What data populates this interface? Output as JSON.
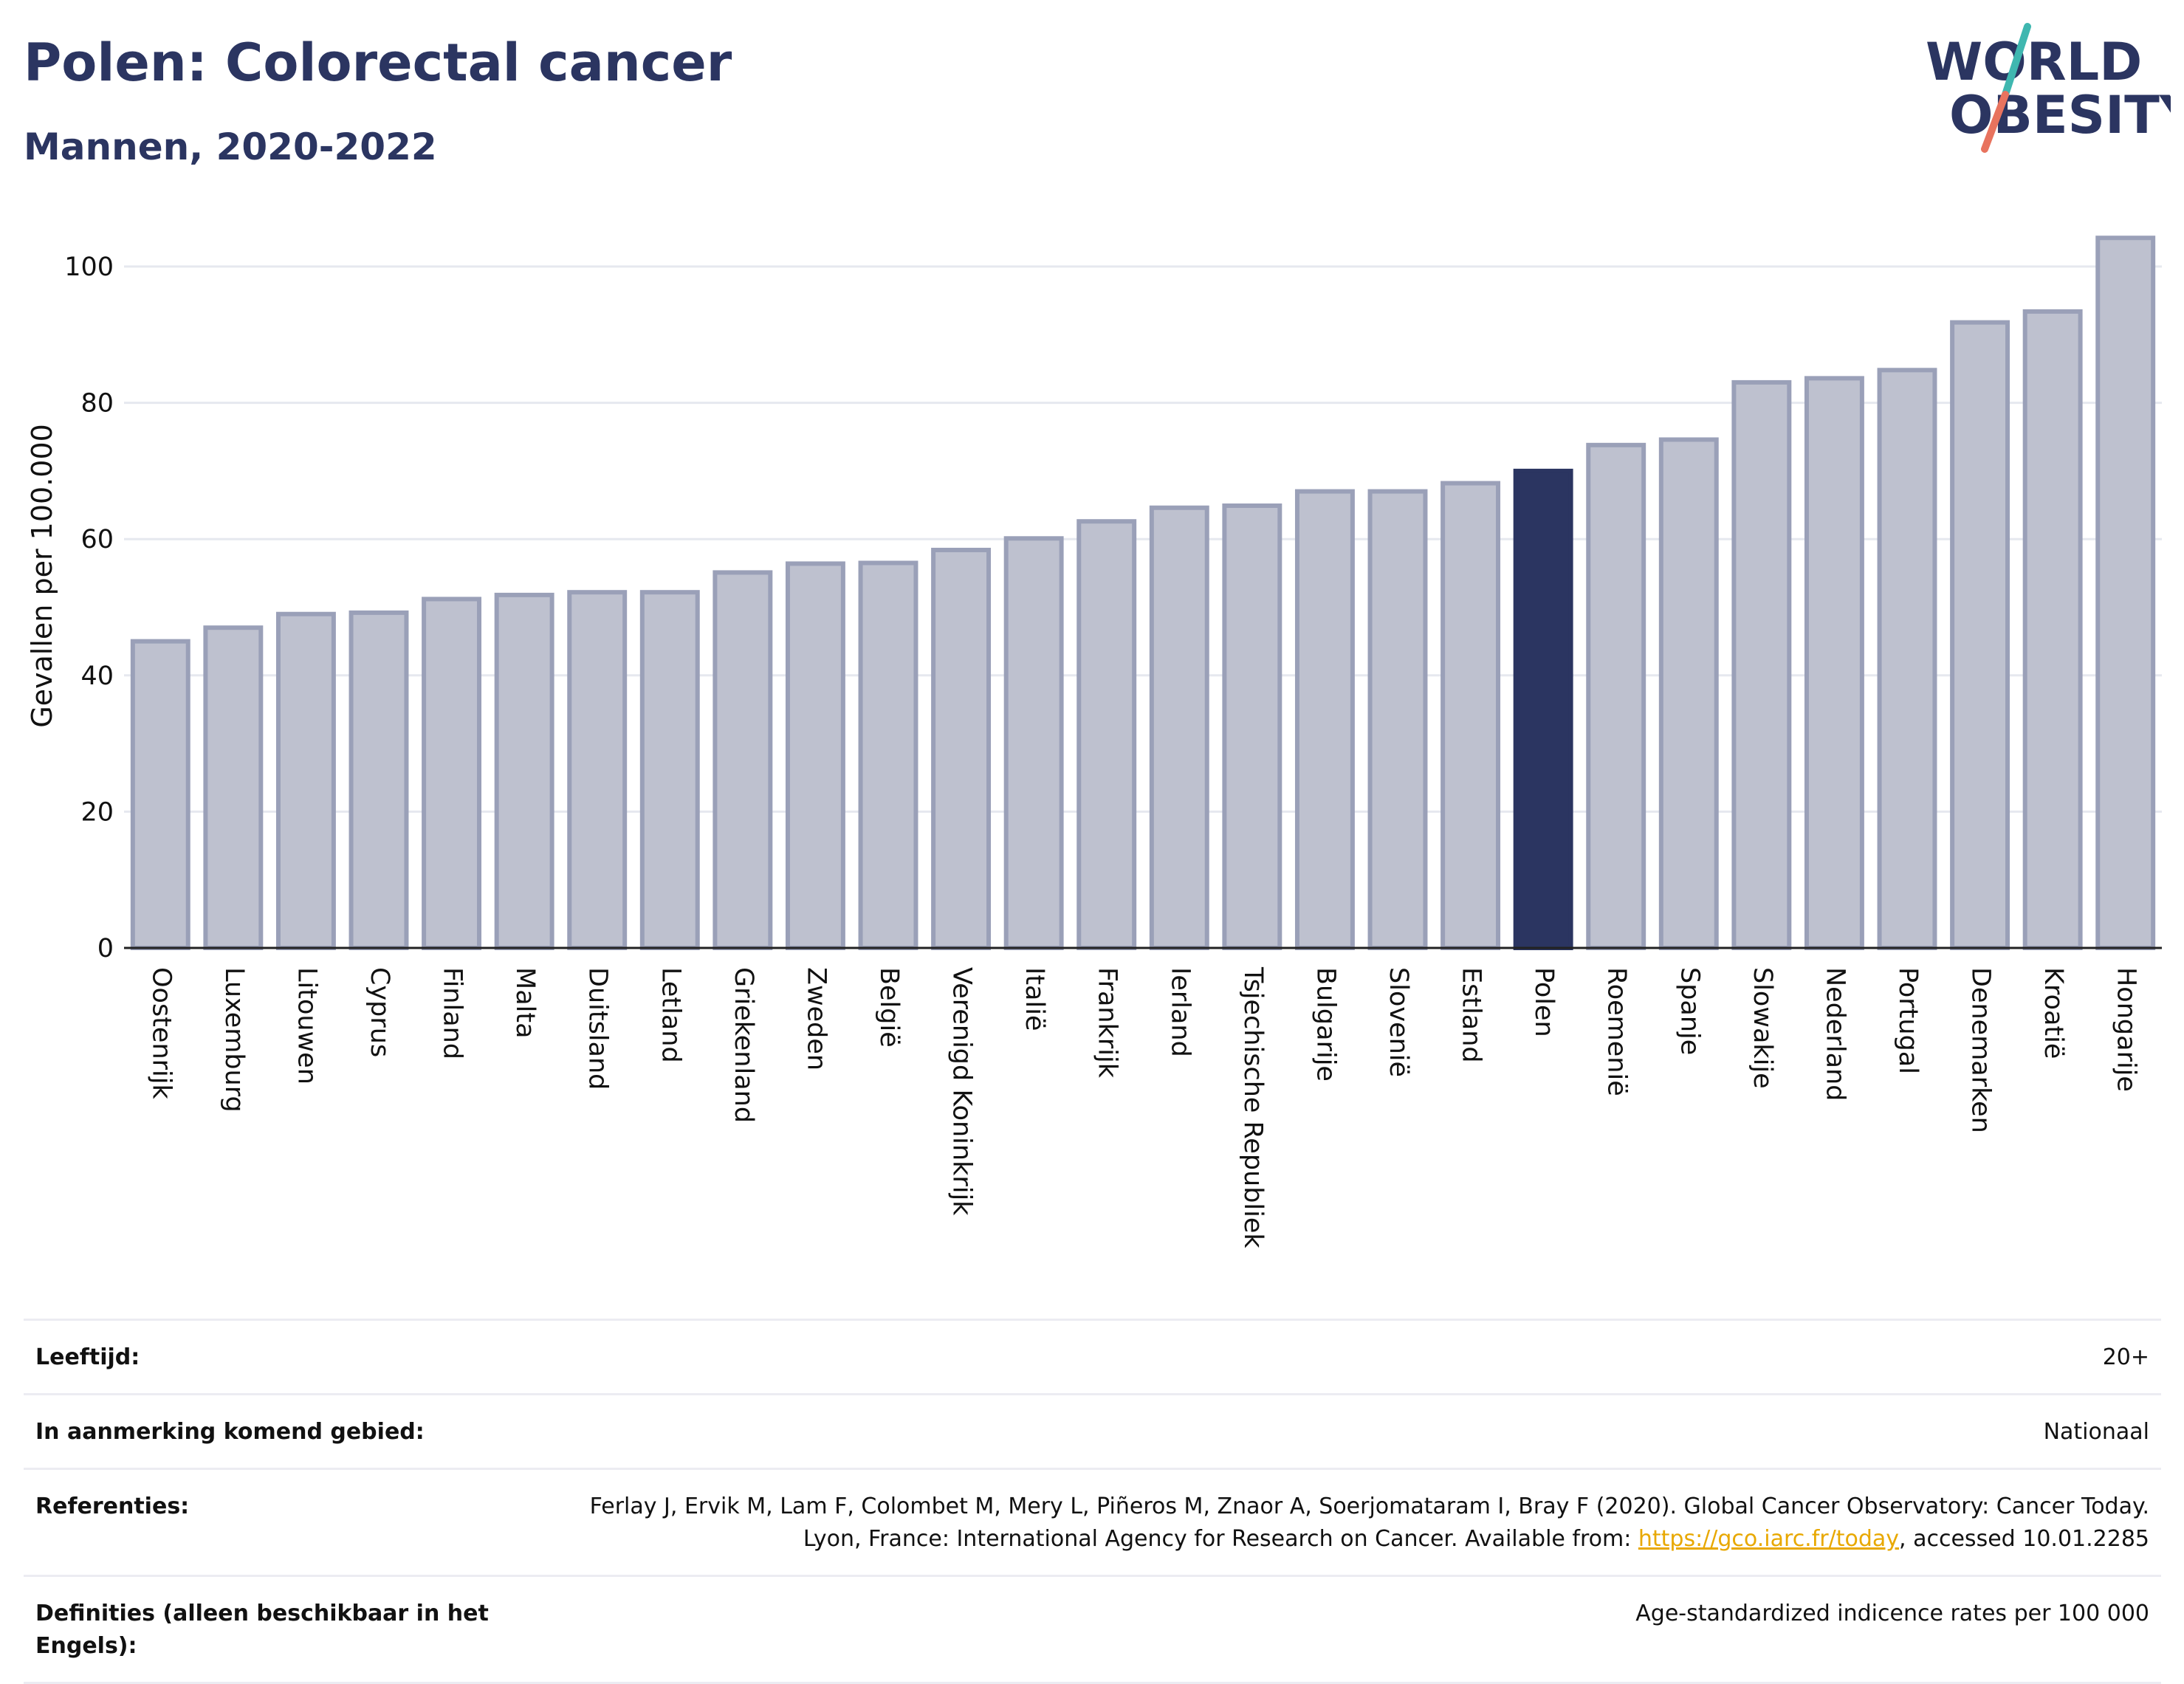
{
  "header": {
    "title": "Polen: Colorectal cancer",
    "subtitle": "Mannen, 2020-2022"
  },
  "logo": {
    "line1": "WORLD",
    "line2": "OBESITY",
    "name": "world-obesity-logo"
  },
  "colors": {
    "highlight": "#2b3561",
    "bar": "#bec1cf",
    "bar_edge": "#9aa0b8",
    "grid": "#e6e8ef",
    "link": "#e8a800"
  },
  "chart_data": {
    "type": "bar",
    "title": "",
    "xlabel": "",
    "ylabel": "Gevallen per 100.000",
    "ylim": [
      0,
      108
    ],
    "yticks": [
      0,
      20,
      40,
      60,
      80,
      100
    ],
    "grid": true,
    "highlight": "Polen",
    "categories": [
      "Oostenrijk",
      "Luxemburg",
      "Litouwen",
      "Cyprus",
      "Finland",
      "Malta",
      "Duitsland",
      "Letland",
      "Griekenland",
      "Zweden",
      "België",
      "Verenigd Koninkrijk",
      "Italië",
      "Frankrijk",
      "Ierland",
      "Tsjechische Republiek",
      "Bulgarije",
      "Slovenië",
      "Estland",
      "Polen",
      "Roemenië",
      "Spanje",
      "Slowakije",
      "Nederland",
      "Portugal",
      "Denemarken",
      "Kroatië",
      "Hongarije"
    ],
    "values": [
      45,
      47,
      49,
      49.2,
      51.2,
      51.8,
      52.2,
      52.2,
      55.1,
      56.4,
      56.5,
      58.4,
      60.1,
      62.6,
      64.6,
      64.9,
      67,
      67,
      68.2,
      70,
      73.8,
      74.6,
      83,
      83.6,
      84.8,
      91.8,
      93.4,
      104.2
    ]
  },
  "info": [
    {
      "key": "Leeftijd:",
      "value": "20+"
    },
    {
      "key": "In aanmerking komend gebied:",
      "value": "Nationaal"
    },
    {
      "key": "Referenties:",
      "value_before": "Ferlay J, Ervik M, Lam F, Colombet M, Mery L, Piñeros M, Znaor A, Soerjomataram I, Bray F (2020). Global Cancer Observatory: Cancer Today. Lyon, France: International Agency for Research on Cancer. Available from: ",
      "link": "https://gco.iarc.fr/today",
      "value_after": ", accessed 10.01.2285"
    },
    {
      "key": "Definities (alleen beschikbaar in het Engels):",
      "value": "Age-standardized indicence rates per 100 000"
    }
  ]
}
